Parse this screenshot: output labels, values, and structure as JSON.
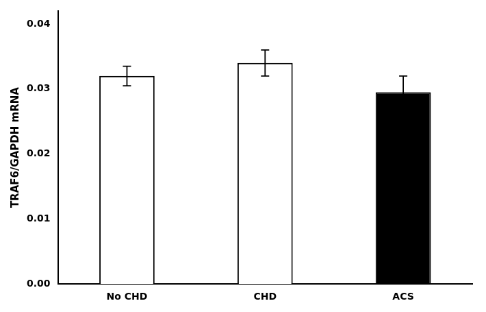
{
  "chart_data": {
    "type": "bar",
    "categories": [
      "No CHD",
      "CHD",
      "ACS"
    ],
    "values": [
      0.032,
      0.034,
      0.0295
    ],
    "errors": [
      0.0015,
      0.002,
      0.0025
    ],
    "colors": [
      "white",
      "white",
      "black"
    ],
    "ylabel": "TRAF6/GAPDH mRNA",
    "ylim": [
      0.0,
      0.042
    ],
    "yticks": [
      {
        "value": 0.0,
        "label": "0.00"
      },
      0.01,
      0.02,
      0.03,
      0.04
    ],
    "grid": false
  }
}
